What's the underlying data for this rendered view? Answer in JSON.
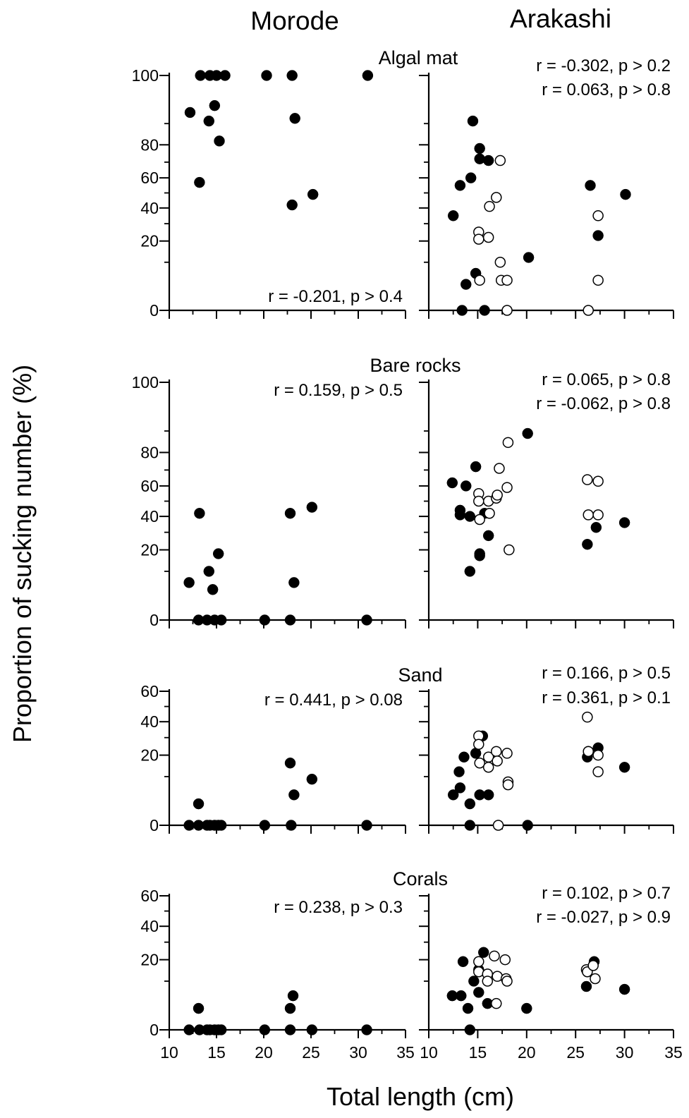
{
  "figure": {
    "columns": [
      "Morode",
      "Arakashi"
    ],
    "xlabel": "Total length (cm)",
    "ylabel": "Proportion of sucking number (%)"
  },
  "chart_data": [
    {
      "type": "scatter",
      "habitat": "Algal mat",
      "site": "Morode",
      "title": "Algal mat",
      "xlim": [
        10,
        35
      ],
      "ylim": [
        0,
        100
      ],
      "yticks": [
        0,
        20,
        40,
        60,
        80,
        100
      ],
      "ytick_labels": [
        "0",
        "20",
        "40",
        "60",
        "80",
        "100"
      ],
      "xticks": [
        10,
        15,
        20,
        25,
        30,
        35
      ],
      "scale": "arcsine-sqrt",
      "stats": [
        {
          "text": "r = -0.201, p > 0.4"
        }
      ],
      "series": [
        {
          "marker": "filled",
          "points": [
            [
              12.2,
              94
            ],
            [
              13.2,
              57
            ],
            [
              13.3,
              100
            ],
            [
              14.2,
              91
            ],
            [
              14.3,
              100
            ],
            [
              14.8,
              96
            ],
            [
              15.0,
              100
            ],
            [
              15.3,
              82
            ],
            [
              15.9,
              100
            ],
            [
              20.3,
              100
            ],
            [
              23.0,
              100
            ],
            [
              23.3,
              92
            ],
            [
              23.0,
              42
            ],
            [
              25.2,
              49
            ],
            [
              31.0,
              100
            ]
          ]
        }
      ]
    },
    {
      "type": "scatter",
      "habitat": "Algal mat",
      "site": "Arakashi",
      "title": "",
      "xlim": [
        10,
        35
      ],
      "ylim": [
        0,
        100
      ],
      "yticks": [
        0,
        20,
        40,
        60,
        80,
        100
      ],
      "xticks": [
        10,
        15,
        20,
        25,
        30,
        35
      ],
      "scale": "arcsine-sqrt",
      "stats": [
        {
          "text": "r = -0.302, p > 0.2"
        },
        {
          "text": "r = 0.063, p > 0.8"
        }
      ],
      "series": [
        {
          "marker": "filled",
          "points": [
            [
              12.5,
              35
            ],
            [
              13.2,
              55
            ],
            [
              13.4,
              0
            ],
            [
              13.8,
              3
            ],
            [
              14.3,
              60
            ],
            [
              14.5,
              91
            ],
            [
              14.8,
              6
            ],
            [
              15.2,
              78
            ],
            [
              15.2,
              72
            ],
            [
              15.7,
              0
            ],
            [
              16.1,
              71
            ],
            [
              20.2,
              12
            ],
            [
              26.5,
              55
            ],
            [
              27.3,
              23
            ],
            [
              30.1,
              49
            ]
          ]
        },
        {
          "marker": "open",
          "points": [
            [
              15.1,
              25
            ],
            [
              15.1,
              21
            ],
            [
              15.2,
              4
            ],
            [
              16.1,
              22
            ],
            [
              16.2,
              41
            ],
            [
              16.9,
              47
            ],
            [
              17.3,
              71
            ],
            [
              17.3,
              10
            ],
            [
              17.4,
              4
            ],
            [
              18.0,
              4
            ],
            [
              18.0,
              0
            ],
            [
              26.3,
              0
            ],
            [
              27.3,
              35
            ],
            [
              27.3,
              4
            ]
          ]
        }
      ]
    },
    {
      "type": "scatter",
      "habitat": "Bare rocks",
      "site": "Morode",
      "title": "Bare rocks",
      "xlim": [
        10,
        35
      ],
      "ylim": [
        0,
        100
      ],
      "yticks": [
        0,
        20,
        40,
        60,
        80,
        100
      ],
      "ytick_labels": [
        "0",
        "20",
        "40",
        "60",
        "80",
        "100"
      ],
      "xticks": [
        10,
        15,
        20,
        25,
        30,
        35
      ],
      "scale": "arcsine-sqrt",
      "stats": [
        {
          "text": "r = 0.159, p > 0.5"
        }
      ],
      "series": [
        {
          "marker": "filled",
          "points": [
            [
              12.1,
              6
            ],
            [
              13.1,
              0
            ],
            [
              13.2,
              42
            ],
            [
              14.0,
              0
            ],
            [
              14.2,
              10
            ],
            [
              14.6,
              4
            ],
            [
              14.8,
              0
            ],
            [
              15.2,
              18
            ],
            [
              15.5,
              0
            ],
            [
              20.1,
              0
            ],
            [
              22.8,
              42
            ],
            [
              22.8,
              0
            ],
            [
              23.2,
              6
            ],
            [
              25.1,
              46
            ],
            [
              30.9,
              0
            ]
          ]
        }
      ]
    },
    {
      "type": "scatter",
      "habitat": "Bare rocks",
      "site": "Arakashi",
      "title": "",
      "xlim": [
        10,
        35
      ],
      "ylim": [
        0,
        100
      ],
      "yticks": [
        0,
        20,
        40,
        60,
        80,
        100
      ],
      "xticks": [
        10,
        15,
        20,
        25,
        30,
        35
      ],
      "scale": "arcsine-sqrt",
      "stats": [
        {
          "text": "r = 0.065, p > 0.8"
        },
        {
          "text": "r = -0.062, p > 0.8"
        }
      ],
      "series": [
        {
          "marker": "filled",
          "points": [
            [
              12.4,
              62
            ],
            [
              13.2,
              44
            ],
            [
              13.2,
              41
            ],
            [
              13.8,
              60
            ],
            [
              14.2,
              40
            ],
            [
              14.2,
              10
            ],
            [
              14.8,
              72
            ],
            [
              15.2,
              18
            ],
            [
              15.2,
              17
            ],
            [
              15.7,
              42
            ],
            [
              16.1,
              28
            ],
            [
              20.1,
              89
            ],
            [
              26.2,
              23
            ],
            [
              27.1,
              33
            ],
            [
              30.0,
              36
            ]
          ]
        },
        {
          "marker": "open",
          "points": [
            [
              15.1,
              55
            ],
            [
              15.1,
              50
            ],
            [
              15.2,
              38
            ],
            [
              16.1,
              50
            ],
            [
              16.2,
              42
            ],
            [
              16.9,
              52
            ],
            [
              17.0,
              54
            ],
            [
              17.2,
              71
            ],
            [
              18.0,
              59
            ],
            [
              18.1,
              85
            ],
            [
              18.2,
              20
            ],
            [
              26.2,
              64
            ],
            [
              26.3,
              41
            ],
            [
              27.3,
              63
            ],
            [
              27.3,
              41
            ]
          ]
        }
      ]
    },
    {
      "type": "scatter",
      "habitat": "Sand",
      "site": "Morode",
      "title": "Sand",
      "xlim": [
        10,
        35
      ],
      "ylim": [
        0,
        60
      ],
      "yticks": [
        0,
        20,
        40,
        60
      ],
      "ytick_labels": [
        "0",
        "20",
        "40",
        "60"
      ],
      "xticks": [
        10,
        15,
        20,
        25,
        30,
        35
      ],
      "scale": "arcsine-sqrt",
      "stats": [
        {
          "text": "r = 0.441, p > 0.08"
        }
      ],
      "series": [
        {
          "marker": "filled",
          "points": [
            [
              12.1,
              0
            ],
            [
              13.1,
              2
            ],
            [
              13.1,
              0
            ],
            [
              14.0,
              0
            ],
            [
              14.3,
              0
            ],
            [
              14.8,
              0
            ],
            [
              15.2,
              0
            ],
            [
              15.5,
              0
            ],
            [
              20.1,
              0
            ],
            [
              22.8,
              16
            ],
            [
              22.9,
              0
            ],
            [
              23.2,
              4
            ],
            [
              25.1,
              9
            ],
            [
              30.9,
              0
            ]
          ]
        }
      ]
    },
    {
      "type": "scatter",
      "habitat": "Sand",
      "site": "Arakashi",
      "title": "",
      "xlim": [
        10,
        35
      ],
      "ylim": [
        0,
        60
      ],
      "yticks": [
        0,
        20,
        40,
        60
      ],
      "xticks": [
        10,
        15,
        20,
        25,
        30,
        35
      ],
      "scale": "arcsine-sqrt",
      "stats": [
        {
          "text": "r = 0.166, p > 0.5"
        },
        {
          "text": "r = 0.361, p > 0.1"
        }
      ],
      "series": [
        {
          "marker": "filled",
          "points": [
            [
              12.5,
              4
            ],
            [
              13.1,
              12
            ],
            [
              13.2,
              6
            ],
            [
              13.6,
              19
            ],
            [
              14.2,
              2
            ],
            [
              14.2,
              0
            ],
            [
              14.8,
              21
            ],
            [
              15.2,
              4
            ],
            [
              15.5,
              31
            ],
            [
              16.1,
              4
            ],
            [
              20.1,
              0
            ],
            [
              26.2,
              19
            ],
            [
              26.3,
              22
            ],
            [
              27.3,
              24
            ],
            [
              30.0,
              14
            ]
          ]
        },
        {
          "marker": "open",
          "points": [
            [
              15.1,
              31
            ],
            [
              15.1,
              26
            ],
            [
              15.2,
              16
            ],
            [
              16.1,
              19
            ],
            [
              16.1,
              14
            ],
            [
              16.9,
              22
            ],
            [
              17.0,
              17
            ],
            [
              17.1,
              0
            ],
            [
              18.0,
              21
            ],
            [
              18.1,
              8
            ],
            [
              18.1,
              7
            ],
            [
              26.2,
              43
            ],
            [
              26.3,
              22
            ],
            [
              27.3,
              20
            ],
            [
              27.3,
              12
            ]
          ]
        }
      ]
    },
    {
      "type": "scatter",
      "habitat": "Corals",
      "site": "Morode",
      "title": "Corals",
      "xlim": [
        10,
        35
      ],
      "ylim": [
        0,
        60
      ],
      "yticks": [
        0,
        20,
        40,
        60
      ],
      "ytick_labels": [
        "0",
        "20",
        "40",
        "60"
      ],
      "xticks": [
        10,
        15,
        20,
        25,
        30,
        35
      ],
      "xtick_labels": [
        "10",
        "15",
        "20",
        "25",
        "30",
        "35"
      ],
      "scale": "arcsine-sqrt",
      "stats": [
        {
          "text": "r = 0.238, p > 0.3"
        }
      ],
      "series": [
        {
          "marker": "filled",
          "points": [
            [
              12.1,
              0
            ],
            [
              13.1,
              2
            ],
            [
              13.2,
              0
            ],
            [
              14.0,
              0
            ],
            [
              14.3,
              0
            ],
            [
              14.8,
              0
            ],
            [
              15.2,
              0
            ],
            [
              15.5,
              0
            ],
            [
              20.1,
              0
            ],
            [
              22.8,
              2
            ],
            [
              22.8,
              0
            ],
            [
              23.1,
              5
            ],
            [
              25.1,
              0
            ],
            [
              30.9,
              0
            ]
          ]
        }
      ]
    },
    {
      "type": "scatter",
      "habitat": "Corals",
      "site": "Arakashi",
      "title": "",
      "xlim": [
        10,
        35
      ],
      "ylim": [
        0,
        60
      ],
      "yticks": [
        0,
        20,
        40,
        60
      ],
      "xticks": [
        10,
        15,
        20,
        25,
        30,
        35
      ],
      "xtick_labels": [
        "10",
        "15",
        "20",
        "25",
        "30",
        "35"
      ],
      "scale": "arcsine-sqrt",
      "stats": [
        {
          "text": "r = 0.102, p > 0.7"
        },
        {
          "text": "r = -0.027, p > 0.9"
        }
      ],
      "series": [
        {
          "marker": "filled",
          "points": [
            [
              12.4,
              5
            ],
            [
              13.3,
              5
            ],
            [
              13.5,
              19
            ],
            [
              14.0,
              2
            ],
            [
              14.2,
              0
            ],
            [
              14.6,
              10
            ],
            [
              15.1,
              15
            ],
            [
              15.1,
              6
            ],
            [
              15.6,
              24
            ],
            [
              16.0,
              3
            ],
            [
              20.0,
              2
            ],
            [
              26.1,
              8
            ],
            [
              26.9,
              19
            ],
            [
              30.0,
              7
            ]
          ]
        },
        {
          "marker": "open",
          "points": [
            [
              15.1,
              19
            ],
            [
              15.1,
              14
            ],
            [
              16.0,
              13
            ],
            [
              16.0,
              10
            ],
            [
              16.7,
              22
            ],
            [
              16.9,
              3
            ],
            [
              17.0,
              12
            ],
            [
              17.8,
              20
            ],
            [
              17.9,
              11
            ],
            [
              18.0,
              10
            ],
            [
              26.1,
              15
            ],
            [
              26.2,
              14
            ],
            [
              26.8,
              17
            ],
            [
              27.0,
              11
            ]
          ]
        }
      ]
    }
  ]
}
